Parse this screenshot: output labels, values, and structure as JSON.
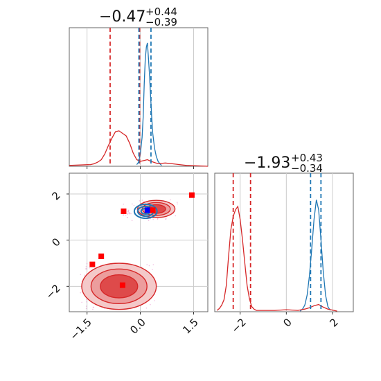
{
  "chart_data": [
    {
      "type": "line",
      "panel": "marginal-x",
      "title": {
        "value": "−0.47",
        "plus": "+0.44",
        "minus": "−0.39"
      },
      "xlim": [
        -2.0,
        1.9
      ],
      "series": [
        {
          "color": "#1f77b4",
          "x": [
            -0.1,
            -0.05,
            0.0,
            0.05,
            0.08,
            0.11,
            0.14,
            0.17,
            0.2,
            0.23,
            0.26,
            0.29,
            0.32,
            0.35,
            0.4,
            0.45,
            0.5,
            0.55,
            0.6
          ],
          "values": [
            2,
            5,
            15,
            35,
            60,
            100,
            130,
            145,
            150,
            130,
            110,
            85,
            60,
            40,
            22,
            12,
            6,
            3,
            1
          ]
        },
        {
          "color": "#d62728",
          "x": [
            -2.0,
            -1.4,
            -1.3,
            -1.2,
            -1.1,
            -1.0,
            -0.9,
            -0.8,
            -0.7,
            -0.6,
            -0.5,
            -0.4,
            -0.3,
            -0.2,
            -0.1,
            0.0,
            0.1,
            0.2,
            0.3,
            0.5,
            0.7,
            0.9,
            1.1,
            1.3,
            1.9
          ],
          "values": [
            1,
            2,
            3,
            5,
            8,
            15,
            25,
            34,
            42,
            43,
            40,
            37,
            28,
            16,
            8,
            6,
            7,
            8,
            6,
            3,
            4,
            3,
            2,
            1,
            0
          ]
        }
      ],
      "vlines": [
        {
          "x": -0.85,
          "color": "#d62728"
        },
        {
          "x": -0.02,
          "color": "#d62728"
        },
        {
          "x": -0.04,
          "color": "#1f77b4"
        },
        {
          "x": 0.3,
          "color": "#1f77b4"
        }
      ]
    },
    {
      "type": "scatter",
      "panel": "joint",
      "xlim": [
        -2.0,
        1.9
      ],
      "ylim": [
        -3.1,
        2.9
      ],
      "xticks": [
        "−1.5",
        "0.0",
        "1.5"
      ],
      "yticks": [
        "−2",
        "0",
        "2"
      ],
      "blue_contours": [
        {
          "cx": 0.15,
          "cy": 1.25,
          "rx": 0.32,
          "ry": 0.55
        }
      ],
      "red_contours": [
        {
          "cx": 0.45,
          "cy": 1.35,
          "rx": 1.05,
          "ry": 0.75
        },
        {
          "cx": -0.6,
          "cy": -2.0,
          "rx": 2.1,
          "ry": 2.0
        }
      ],
      "markers": [
        {
          "x": 0.2,
          "y": 1.3,
          "color": "#0000ff"
        },
        {
          "x": -0.47,
          "y": 1.25,
          "color": "#ff0000"
        },
        {
          "x": 0.35,
          "y": 1.3,
          "color": "#ff0000"
        },
        {
          "x": 1.45,
          "y": 1.95,
          "color": "#ff0000"
        },
        {
          "x": -1.1,
          "y": -0.7,
          "color": "#ff0000"
        },
        {
          "x": -1.35,
          "y": -1.05,
          "color": "#ff0000"
        },
        {
          "x": -0.5,
          "y": -1.95,
          "color": "#ff0000"
        }
      ]
    },
    {
      "type": "line",
      "panel": "marginal-y",
      "title": {
        "value": "−1.93",
        "plus": "+0.43",
        "minus": "−0.34"
      },
      "xlim": [
        -3.1,
        2.9
      ],
      "xticks": [
        "−2",
        "0",
        "2"
      ],
      "series": [
        {
          "color": "#1f77b4",
          "x": [
            0.6,
            0.7,
            0.8,
            0.9,
            1.0,
            1.1,
            1.2,
            1.3,
            1.4,
            1.5,
            1.6,
            1.7,
            1.8,
            1.9
          ],
          "values": [
            1,
            4,
            10,
            25,
            55,
            95,
            140,
            170,
            155,
            110,
            60,
            25,
            8,
            2
          ]
        },
        {
          "color": "#d62728",
          "x": [
            -3.0,
            -2.9,
            -2.8,
            -2.7,
            -2.6,
            -2.5,
            -2.4,
            -2.3,
            -2.2,
            -2.1,
            -2.0,
            -1.9,
            -1.8,
            -1.7,
            -1.6,
            -1.5,
            -1.4,
            -1.3,
            -0.5,
            0.0,
            0.5,
            0.8,
            1.0,
            1.2,
            1.4,
            1.6,
            1.8,
            2.2
          ],
          "values": [
            2,
            5,
            10,
            18,
            40,
            85,
            125,
            145,
            155,
            160,
            140,
            110,
            75,
            40,
            20,
            8,
            4,
            2,
            2,
            3,
            2,
            4,
            6,
            9,
            11,
            7,
            4,
            1
          ]
        }
      ],
      "vlines": [
        {
          "x": -2.3,
          "color": "#d62728"
        },
        {
          "x": -1.55,
          "color": "#d62728"
        },
        {
          "x": 1.05,
          "color": "#1f77b4"
        },
        {
          "x": 1.5,
          "color": "#1f77b4"
        }
      ]
    }
  ]
}
